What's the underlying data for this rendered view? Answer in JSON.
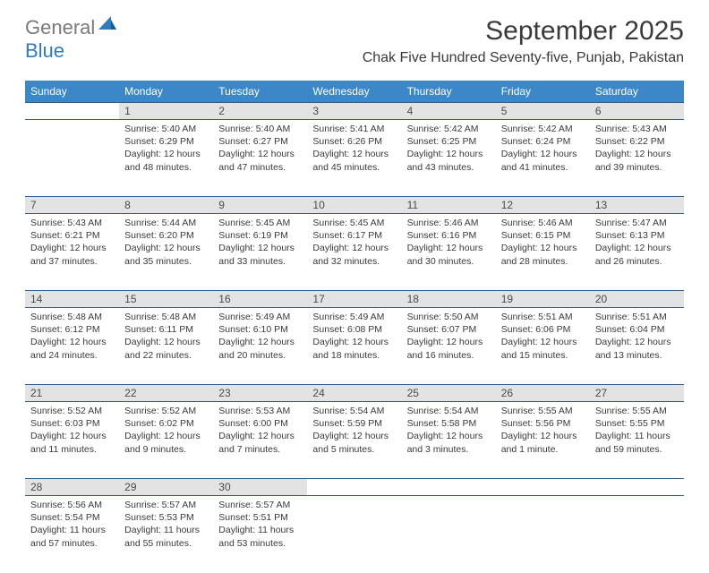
{
  "brand": {
    "main": "General",
    "sub": "Blue"
  },
  "title": "September 2025",
  "location": "Chak Five Hundred Seventy-five, Punjab, Pakistan",
  "colors": {
    "header_bg": "#3b87c8",
    "header_text": "#ffffff",
    "daynum_bg": "#e3e3e3",
    "border": "#2f5f8a",
    "logo_gray": "#7a7a7a",
    "logo_blue": "#2e7cc0",
    "body_text": "#3a3a3a"
  },
  "day_headers": [
    "Sunday",
    "Monday",
    "Tuesday",
    "Wednesday",
    "Thursday",
    "Friday",
    "Saturday"
  ],
  "weeks": [
    [
      null,
      {
        "n": "1",
        "sr": "Sunrise: 5:40 AM",
        "ss": "Sunset: 6:29 PM",
        "dl": "Daylight: 12 hours and 48 minutes."
      },
      {
        "n": "2",
        "sr": "Sunrise: 5:40 AM",
        "ss": "Sunset: 6:27 PM",
        "dl": "Daylight: 12 hours and 47 minutes."
      },
      {
        "n": "3",
        "sr": "Sunrise: 5:41 AM",
        "ss": "Sunset: 6:26 PM",
        "dl": "Daylight: 12 hours and 45 minutes."
      },
      {
        "n": "4",
        "sr": "Sunrise: 5:42 AM",
        "ss": "Sunset: 6:25 PM",
        "dl": "Daylight: 12 hours and 43 minutes."
      },
      {
        "n": "5",
        "sr": "Sunrise: 5:42 AM",
        "ss": "Sunset: 6:24 PM",
        "dl": "Daylight: 12 hours and 41 minutes."
      },
      {
        "n": "6",
        "sr": "Sunrise: 5:43 AM",
        "ss": "Sunset: 6:22 PM",
        "dl": "Daylight: 12 hours and 39 minutes."
      }
    ],
    [
      {
        "n": "7",
        "sr": "Sunrise: 5:43 AM",
        "ss": "Sunset: 6:21 PM",
        "dl": "Daylight: 12 hours and 37 minutes."
      },
      {
        "n": "8",
        "sr": "Sunrise: 5:44 AM",
        "ss": "Sunset: 6:20 PM",
        "dl": "Daylight: 12 hours and 35 minutes."
      },
      {
        "n": "9",
        "sr": "Sunrise: 5:45 AM",
        "ss": "Sunset: 6:19 PM",
        "dl": "Daylight: 12 hours and 33 minutes."
      },
      {
        "n": "10",
        "sr": "Sunrise: 5:45 AM",
        "ss": "Sunset: 6:17 PM",
        "dl": "Daylight: 12 hours and 32 minutes."
      },
      {
        "n": "11",
        "sr": "Sunrise: 5:46 AM",
        "ss": "Sunset: 6:16 PM",
        "dl": "Daylight: 12 hours and 30 minutes."
      },
      {
        "n": "12",
        "sr": "Sunrise: 5:46 AM",
        "ss": "Sunset: 6:15 PM",
        "dl": "Daylight: 12 hours and 28 minutes."
      },
      {
        "n": "13",
        "sr": "Sunrise: 5:47 AM",
        "ss": "Sunset: 6:13 PM",
        "dl": "Daylight: 12 hours and 26 minutes."
      }
    ],
    [
      {
        "n": "14",
        "sr": "Sunrise: 5:48 AM",
        "ss": "Sunset: 6:12 PM",
        "dl": "Daylight: 12 hours and 24 minutes."
      },
      {
        "n": "15",
        "sr": "Sunrise: 5:48 AM",
        "ss": "Sunset: 6:11 PM",
        "dl": "Daylight: 12 hours and 22 minutes."
      },
      {
        "n": "16",
        "sr": "Sunrise: 5:49 AM",
        "ss": "Sunset: 6:10 PM",
        "dl": "Daylight: 12 hours and 20 minutes."
      },
      {
        "n": "17",
        "sr": "Sunrise: 5:49 AM",
        "ss": "Sunset: 6:08 PM",
        "dl": "Daylight: 12 hours and 18 minutes."
      },
      {
        "n": "18",
        "sr": "Sunrise: 5:50 AM",
        "ss": "Sunset: 6:07 PM",
        "dl": "Daylight: 12 hours and 16 minutes."
      },
      {
        "n": "19",
        "sr": "Sunrise: 5:51 AM",
        "ss": "Sunset: 6:06 PM",
        "dl": "Daylight: 12 hours and 15 minutes."
      },
      {
        "n": "20",
        "sr": "Sunrise: 5:51 AM",
        "ss": "Sunset: 6:04 PM",
        "dl": "Daylight: 12 hours and 13 minutes."
      }
    ],
    [
      {
        "n": "21",
        "sr": "Sunrise: 5:52 AM",
        "ss": "Sunset: 6:03 PM",
        "dl": "Daylight: 12 hours and 11 minutes."
      },
      {
        "n": "22",
        "sr": "Sunrise: 5:52 AM",
        "ss": "Sunset: 6:02 PM",
        "dl": "Daylight: 12 hours and 9 minutes."
      },
      {
        "n": "23",
        "sr": "Sunrise: 5:53 AM",
        "ss": "Sunset: 6:00 PM",
        "dl": "Daylight: 12 hours and 7 minutes."
      },
      {
        "n": "24",
        "sr": "Sunrise: 5:54 AM",
        "ss": "Sunset: 5:59 PM",
        "dl": "Daylight: 12 hours and 5 minutes."
      },
      {
        "n": "25",
        "sr": "Sunrise: 5:54 AM",
        "ss": "Sunset: 5:58 PM",
        "dl": "Daylight: 12 hours and 3 minutes."
      },
      {
        "n": "26",
        "sr": "Sunrise: 5:55 AM",
        "ss": "Sunset: 5:56 PM",
        "dl": "Daylight: 12 hours and 1 minute."
      },
      {
        "n": "27",
        "sr": "Sunrise: 5:55 AM",
        "ss": "Sunset: 5:55 PM",
        "dl": "Daylight: 11 hours and 59 minutes."
      }
    ],
    [
      {
        "n": "28",
        "sr": "Sunrise: 5:56 AM",
        "ss": "Sunset: 5:54 PM",
        "dl": "Daylight: 11 hours and 57 minutes."
      },
      {
        "n": "29",
        "sr": "Sunrise: 5:57 AM",
        "ss": "Sunset: 5:53 PM",
        "dl": "Daylight: 11 hours and 55 minutes."
      },
      {
        "n": "30",
        "sr": "Sunrise: 5:57 AM",
        "ss": "Sunset: 5:51 PM",
        "dl": "Daylight: 11 hours and 53 minutes."
      },
      null,
      null,
      null,
      null
    ]
  ]
}
